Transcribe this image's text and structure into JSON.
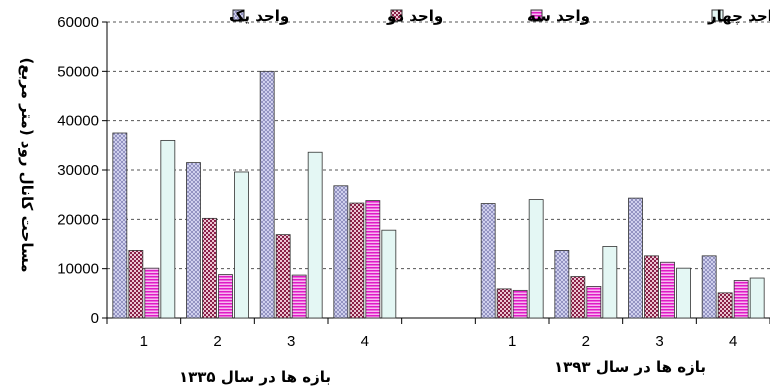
{
  "chart_data": {
    "type": "bar",
    "ylabel": "مساحت کانال رود (متر مربع)",
    "ylim": [
      0,
      60000
    ],
    "yticks": [
      0,
      10000,
      20000,
      30000,
      40000,
      50000,
      60000
    ],
    "grid": true,
    "legend_position": "top",
    "groups": [
      {
        "label": "بازه ها در سال ۱۳۳۵",
        "categories": [
          "1",
          "2",
          "3",
          "4"
        ]
      },
      {
        "label": "بازه ها در سال ۱۳۹۳",
        "categories": [
          "1",
          "2",
          "3",
          "4"
        ]
      }
    ],
    "series": [
      {
        "name": "واحد یک",
        "values": [
          37500,
          31500,
          50000,
          26800,
          23200,
          13700,
          24300,
          12600
        ],
        "color": "#cfcfef",
        "pattern": "crosshatch"
      },
      {
        "name": "واحد دو",
        "values": [
          13700,
          20200,
          16900,
          23300,
          5900,
          8400,
          12600,
          5100
        ],
        "color": "#a0305a",
        "pattern": "checker"
      },
      {
        "name": "واحد سه",
        "values": [
          10100,
          8800,
          8700,
          23800,
          5600,
          6400,
          11300,
          7600
        ],
        "color": "#e020c8",
        "pattern": "stripes"
      },
      {
        "name": "واحد چهار",
        "values": [
          36000,
          29600,
          33600,
          17800,
          24000,
          14500,
          10100,
          8100
        ],
        "color": "#e4f7f4",
        "pattern": "solid"
      }
    ]
  }
}
